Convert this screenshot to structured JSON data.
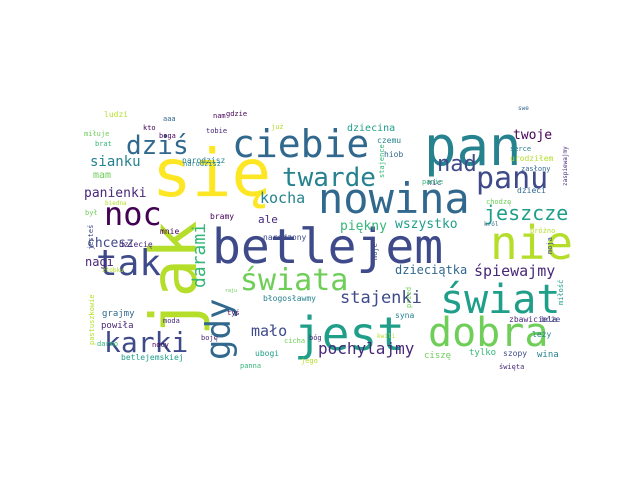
{
  "wordcloud": {
    "palette": [
      "#440154",
      "#482878",
      "#3e4a89",
      "#31688e",
      "#26828e",
      "#1f9e89",
      "#35b779",
      "#6ece58",
      "#b5de2b",
      "#fde725"
    ],
    "words": [
      {
        "text": "się",
        "color": "#fde725"
      },
      {
        "text": "betlejem",
        "color": "#3e4a89"
      },
      {
        "text": "jak",
        "color": "#b5de2b"
      },
      {
        "text": "nowina",
        "color": "#31688e"
      },
      {
        "text": "pan",
        "color": "#26828e"
      },
      {
        "text": "ciebie",
        "color": "#31688e"
      },
      {
        "text": "jest",
        "color": "#1f9e89"
      },
      {
        "text": "świat",
        "color": "#1f9e89"
      },
      {
        "text": "dobra",
        "color": "#6ece58"
      },
      {
        "text": "nie",
        "color": "#b5de2b"
      },
      {
        "text": "gdy",
        "color": "#31688e"
      },
      {
        "text": "tak",
        "color": "#3e4a89"
      },
      {
        "text": "noc",
        "color": "#440154"
      },
      {
        "text": "świata",
        "color": "#6ece58"
      },
      {
        "text": "panu",
        "color": "#3e4a89"
      },
      {
        "text": "dziś",
        "color": "#31688e"
      },
      {
        "text": "twarde",
        "color": "#26828e"
      },
      {
        "text": "karki",
        "color": "#3e4a89"
      },
      {
        "text": "nad",
        "color": "#3e4a89"
      },
      {
        "text": "jeszcze",
        "color": "#1f9e89"
      },
      {
        "text": "darami",
        "color": "#35b779"
      },
      {
        "text": "stajenki",
        "color": "#3e4a89"
      },
      {
        "text": "pochylajmy",
        "color": "#482878"
      },
      {
        "text": "kocha",
        "color": "#26828e"
      },
      {
        "text": "śpiewajmy",
        "color": "#482878"
      },
      {
        "text": "mało",
        "color": "#3e4a89"
      },
      {
        "text": "piękny",
        "color": "#35b779"
      },
      {
        "text": "wszystko",
        "color": "#1f9e89"
      },
      {
        "text": "sianku",
        "color": "#26828e"
      },
      {
        "text": "panienki",
        "color": "#482878"
      },
      {
        "text": "chcesz",
        "color": "#3e4a89"
      },
      {
        "text": "twoje",
        "color": "#440154"
      },
      {
        "text": "nagi",
        "color": "#482878"
      },
      {
        "text": "dzieciątka",
        "color": "#31688e"
      },
      {
        "text": "dziecina",
        "color": "#1f9e89"
      },
      {
        "text": "mam",
        "color": "#6ece58"
      },
      {
        "text": "ale",
        "color": "#482878"
      },
      {
        "text": "czemu",
        "color": "#26828e"
      },
      {
        "text": "hiob",
        "color": "#31688e"
      },
      {
        "text": "urodziłem",
        "color": "#b5de2b"
      },
      {
        "text": "nic",
        "color": "#3e4a89"
      },
      {
        "text": "dzieci",
        "color": "#31688e"
      },
      {
        "text": "narodzony",
        "color": "#3e4a89"
      },
      {
        "text": "narodzisz",
        "color": "#26828e"
      },
      {
        "text": "bramy",
        "color": "#440154"
      },
      {
        "text": "mnie",
        "color": "#440154"
      },
      {
        "text": "dziecię",
        "color": "#482878"
      },
      {
        "text": "grajmy",
        "color": "#31688e"
      },
      {
        "text": "powiła",
        "color": "#482878"
      },
      {
        "text": "błogosławmy",
        "color": "#26828e"
      },
      {
        "text": "ubogi",
        "color": "#1f9e89"
      },
      {
        "text": "ciszę",
        "color": "#6ece58"
      },
      {
        "text": "tylko",
        "color": "#35b779"
      },
      {
        "text": "szopy",
        "color": "#3e4a89"
      },
      {
        "text": "wina",
        "color": "#26828e"
      },
      {
        "text": "syna",
        "color": "#26828e"
      },
      {
        "text": "zbawiciela",
        "color": "#482878"
      },
      {
        "text": "boże",
        "color": "#3e4a89"
      },
      {
        "text": "leży",
        "color": "#26828e"
      },
      {
        "text": "betlejemskiej",
        "color": "#1f9e89"
      },
      {
        "text": "moda",
        "color": "#482878"
      },
      {
        "text": "boję",
        "color": "#482878"
      },
      {
        "text": "tyś",
        "color": "#440154"
      },
      {
        "text": "cicha",
        "color": "#6ece58"
      },
      {
        "text": "bóg",
        "color": "#482878"
      },
      {
        "text": "jego",
        "color": "#b5de2b"
      },
      {
        "text": "kwili",
        "color": "#b5de2b"
      },
      {
        "text": "panna",
        "color": "#35b779"
      },
      {
        "text": "nocy",
        "color": "#440154"
      },
      {
        "text": "ludzi",
        "color": "#b5de2b"
      },
      {
        "text": "miłuje",
        "color": "#6ece58"
      },
      {
        "text": "kto",
        "color": "#440154"
      },
      {
        "text": "aaa",
        "color": "#31688e"
      },
      {
        "text": "nam",
        "color": "#440154"
      },
      {
        "text": "gdzie",
        "color": "#440154"
      },
      {
        "text": "tobie",
        "color": "#482878"
      },
      {
        "text": "już",
        "color": "#b5de2b"
      },
      {
        "text": "boga",
        "color": "#440154"
      },
      {
        "text": "narodzisz",
        "color": "#26828e"
      },
      {
        "text": "brat",
        "color": "#35b779"
      },
      {
        "text": "serce",
        "color": "#26828e"
      },
      {
        "text": "zasłony",
        "color": "#31688e"
      },
      {
        "text": "święta",
        "color": "#482878"
      },
      {
        "text": "chodzę",
        "color": "#6ece58"
      },
      {
        "text": "próżno",
        "color": "#b5de2b"
      },
      {
        "text": "moja",
        "color": "#3e4a89"
      },
      {
        "text": "miłość",
        "color": "#1f9e89"
      },
      {
        "text": "zaspiewajmy",
        "color": "#482878"
      },
      {
        "text": "stajence",
        "color": "#35b779"
      },
      {
        "text": "panie",
        "color": "#35b779"
      },
      {
        "text": "przed",
        "color": "#6ece58"
      },
      {
        "text": "król",
        "color": "#31688e"
      },
      {
        "text": "moje",
        "color": "#3e4a89"
      },
      {
        "text": "był",
        "color": "#6ece58"
      },
      {
        "text": "jesteś",
        "color": "#3e4a89"
      },
      {
        "text": "pastuszkowie",
        "color": "#b5de2b"
      },
      {
        "text": "darmo",
        "color": "#35b779"
      },
      {
        "text": "biedna",
        "color": "#b5de2b"
      },
      {
        "text": "żłobku",
        "color": "#b5de2b"
      },
      {
        "text": "swe",
        "color": "#31688e"
      },
      {
        "text": "raju",
        "color": "#6ece58"
      }
    ]
  }
}
